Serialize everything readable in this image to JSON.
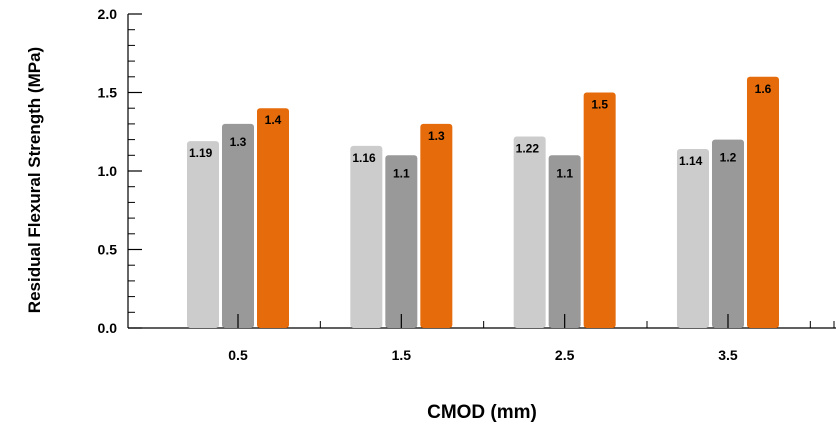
{
  "chart_data": {
    "type": "bar",
    "xlabel": "CMOD (mm)",
    "ylabel": "Residual Flexural Strength (MPa)",
    "ylim": [
      0,
      2.0
    ],
    "yticks": [
      "0.0",
      "0.5",
      "1.0",
      "1.5",
      "2.0"
    ],
    "categories": [
      "0.5",
      "1.5",
      "2.5",
      "3.5"
    ],
    "grid": false,
    "series": [
      {
        "values": [
          1.19,
          1.16,
          1.22,
          1.14
        ],
        "labels": [
          "1.19",
          "1.16",
          "1.22",
          "1.14"
        ],
        "color": "#cccccc"
      },
      {
        "values": [
          1.3,
          1.1,
          1.1,
          1.2
        ],
        "labels": [
          "1.3",
          "1.1",
          "1.1",
          "1.2"
        ],
        "color": "#999999"
      },
      {
        "values": [
          1.4,
          1.3,
          1.5,
          1.6
        ],
        "labels": [
          "1.4",
          "1.3",
          "1.5",
          "1.6"
        ],
        "color": "#e56b0b"
      }
    ]
  }
}
